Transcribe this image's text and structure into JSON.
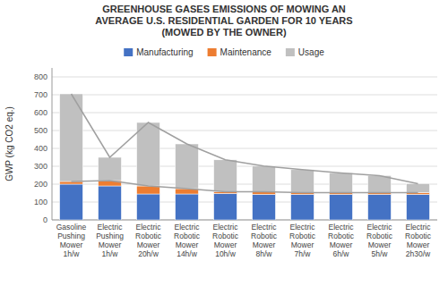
{
  "chart_data": {
    "type": "bar",
    "stacked": true,
    "title": "GREENHOUSE GASES EMISSIONS OF MOWING AN\nAVERAGE U.S. RESIDENTIAL GARDEN FOR 10 YEARS\n(MOWED BY THE OWNER)",
    "ylabel": "GWP (kg CO2 eq.)",
    "categories": [
      "Gasoline\nPushing\nMower\n1h/w",
      "Electric\nPushing\nMower\n1h/w",
      "Electric\nRobotic\nMower\n20h/w",
      "Electric\nRobotic\nMower\n14h/w",
      "Electric\nRobotic\nMower\n10h/w",
      "Electric\nRobotic\nMower\n8h/w",
      "Electric\nRobotic\nMower\n7h/w",
      "Electric\nRobotic\nMower\n6h/w",
      "Electric\nRobotic\nMower\n5h/w",
      "Electric\nRobotic\nMower\n2h30/w"
    ],
    "series": [
      {
        "name": "Manufacturing",
        "type": "bar",
        "color": "#4472C4",
        "values": [
          200,
          190,
          145,
          145,
          148,
          143,
          143,
          143,
          143,
          143
        ]
      },
      {
        "name": "Maintenance",
        "type": "bar",
        "color": "#ED7D31",
        "values": [
          15,
          30,
          45,
          30,
          10,
          15,
          10,
          10,
          10,
          10
        ]
      },
      {
        "name": "Usage",
        "type": "bar",
        "color": "#C0C0C0",
        "values": [
          490,
          130,
          355,
          250,
          178,
          143,
          128,
          110,
          95,
          50
        ]
      },
      {
        "type": "line",
        "color": "#A0A0A0",
        "values": [
          215,
          220,
          190,
          175,
          158,
          158,
          153,
          153,
          153,
          153
        ]
      },
      {
        "type": "line",
        "color": "#A0A0A0",
        "values": [
          705,
          350,
          545,
          425,
          336,
          301,
          281,
          263,
          248,
          203
        ]
      }
    ],
    "ylim": [
      0,
      850
    ],
    "yticks": [
      0,
      100,
      200,
      300,
      400,
      500,
      600,
      700,
      800
    ],
    "grid": true,
    "legend": "top"
  }
}
